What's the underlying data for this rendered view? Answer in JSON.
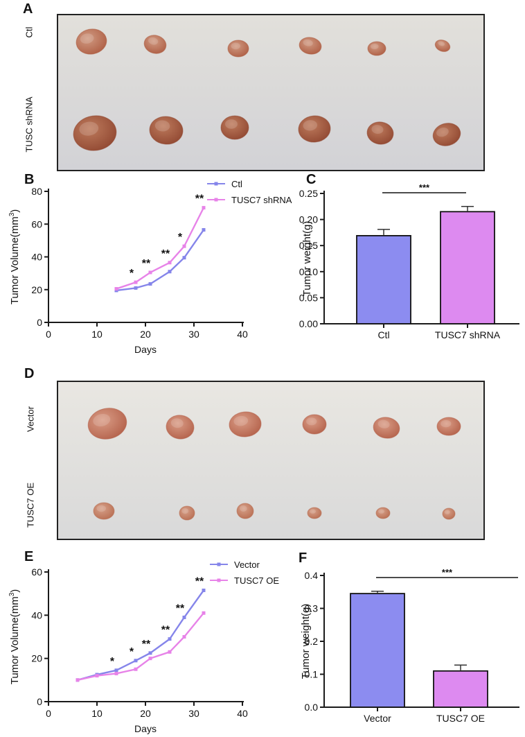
{
  "panel_labels": [
    "A",
    "B",
    "C",
    "D",
    "E",
    "F"
  ],
  "photos": [
    {
      "panel": "A",
      "background": {
        "top": "#e2e0db",
        "bottom": "#d2d2d6"
      },
      "rows": [
        {
          "label": "Ctl",
          "specimen_count": 6,
          "light": "#d09a82",
          "dark": "#ad5c42",
          "tumors": [
            [
              50,
              40,
              22,
              18,
              -10
            ],
            [
              142,
              44,
              16,
              13,
              15
            ],
            [
              262,
              50,
              15,
              12,
              0
            ],
            [
              366,
              46,
              16,
              12,
              10
            ],
            [
              462,
              50,
              13,
              10,
              0
            ],
            [
              557,
              46,
              11,
              8,
              20
            ]
          ]
        },
        {
          "label": "TUSC shRNA",
          "specimen_count": 6,
          "light": "#bd7a5c",
          "dark": "#8f4630",
          "tumors": [
            [
              55,
              172,
              31,
              25,
              -8
            ],
            [
              158,
              168,
              24,
              20,
              5
            ],
            [
              257,
              164,
              20,
              17,
              0
            ],
            [
              372,
              166,
              23,
              19,
              -5
            ],
            [
              467,
              172,
              19,
              16,
              8
            ],
            [
              563,
              174,
              20,
              16,
              -15
            ]
          ]
        }
      ]
    },
    {
      "panel": "D",
      "background": {
        "top": "#e9e7e2",
        "bottom": "#d9d9d9"
      },
      "rows": [
        {
          "label": "Vector",
          "specimen_count": 6,
          "light": "#d99c86",
          "dark": "#b25f48",
          "tumors": [
            [
              73,
              62,
              28,
              22,
              -12
            ],
            [
              178,
              67,
              20,
              17,
              8
            ],
            [
              272,
              63,
              23,
              18,
              -5
            ],
            [
              372,
              63,
              17,
              14,
              0
            ],
            [
              476,
              68,
              19,
              15,
              10
            ],
            [
              566,
              66,
              17,
              13,
              0
            ]
          ]
        },
        {
          "label": "TUSC7 OE",
          "specimen_count": 6,
          "light": "#d6a089",
          "dark": "#b76c50",
          "tumors": [
            [
              68,
              188,
              15,
              12,
              0
            ],
            [
              188,
              191,
              11,
              10,
              0
            ],
            [
              272,
              188,
              12,
              11,
              5
            ],
            [
              372,
              191,
              10,
              8,
              0
            ],
            [
              471,
              191,
              10,
              8,
              0
            ],
            [
              566,
              192,
              9,
              8,
              0
            ]
          ]
        }
      ]
    }
  ],
  "chart_data": [
    {
      "type": "line",
      "panel": "B",
      "x": [
        14,
        18,
        21,
        25,
        28,
        32
      ],
      "series": [
        {
          "name": "Ctl",
          "color": "#8585ea",
          "values": [
            19.5,
            21,
            23.5,
            31,
            39.5,
            56.5
          ]
        },
        {
          "name": "TUSC7 shRNA",
          "color": "#e783e8",
          "values": [
            20.5,
            24.5,
            30.5,
            36.5,
            46.5,
            70
          ]
        }
      ],
      "xlabel": "Days",
      "ylabel": "Tumor Volume(mm3)",
      "ylabel_parts": [
        [
          "Tumor Volume(mm",
          false
        ],
        [
          "3",
          true
        ],
        [
          ")",
          false
        ]
      ],
      "xlim": [
        0,
        40
      ],
      "ylim": [
        0,
        80
      ],
      "xticks": [
        "0",
        "10",
        "20",
        "30",
        "40"
      ],
      "yticks": [
        "0",
        "20",
        "40",
        "60",
        "80"
      ],
      "annotations": [
        {
          "day": 18,
          "label": "*"
        },
        {
          "day": 21,
          "label": "**"
        },
        {
          "day": 25,
          "label": "**"
        },
        {
          "day": 28,
          "label": "*"
        },
        {
          "day": 32,
          "label": "**"
        }
      ],
      "legend_position": "top-right",
      "grid": false
    },
    {
      "type": "bar",
      "panel": "C",
      "categories": [
        "Ctl",
        "TUSC7 shRNA"
      ],
      "values": [
        0.169,
        0.215
      ],
      "errors": [
        0.012,
        0.01
      ],
      "colors": [
        "#8c8cf0",
        "#dd8af0"
      ],
      "ylabel": "Tumor weight(g)",
      "ylabel_parts": [
        [
          "Tumor weight(g)",
          false
        ]
      ],
      "ylim": [
        0,
        0.25
      ],
      "yticks": [
        "0.00",
        "0.05",
        "0.10",
        "0.15",
        "0.20",
        "0.25"
      ],
      "significance": "***",
      "grid": false
    },
    {
      "type": "line",
      "panel": "E",
      "x": [
        6,
        10,
        14,
        18,
        21,
        25,
        28,
        32
      ],
      "series": [
        {
          "name": "Vector",
          "color": "#8585ea",
          "values": [
            10,
            12.5,
            14.5,
            19,
            22.5,
            29,
            39,
            51.5
          ]
        },
        {
          "name": "TUSC7 OE",
          "color": "#e783e8",
          "values": [
            10,
            12,
            13,
            15,
            20,
            23,
            30,
            41
          ]
        }
      ],
      "xlabel": "Days",
      "ylabel": "Tumor Volume(mm3)",
      "ylabel_parts": [
        [
          "Tumor Volume(mm",
          false
        ],
        [
          "3",
          true
        ],
        [
          ")",
          false
        ]
      ],
      "xlim": [
        0,
        40
      ],
      "ylim": [
        0,
        60
      ],
      "xticks": [
        "0",
        "10",
        "20",
        "30",
        "40"
      ],
      "yticks": [
        "0",
        "20",
        "40",
        "60"
      ],
      "annotations": [
        {
          "day": 14,
          "label": "*"
        },
        {
          "day": 18,
          "label": "*"
        },
        {
          "day": 21,
          "label": "**"
        },
        {
          "day": 25,
          "label": "**"
        },
        {
          "day": 28,
          "label": "**"
        },
        {
          "day": 32,
          "label": "**"
        }
      ],
      "legend_position": "top-right",
      "grid": false
    },
    {
      "type": "bar",
      "panel": "F",
      "categories": [
        "Vector",
        "TUSC7 OE"
      ],
      "values": [
        0.345,
        0.11
      ],
      "errors": [
        0.007,
        0.018
      ],
      "colors": [
        "#8c8cf0",
        "#dd8af0"
      ],
      "ylabel": "Tumor weight(g)",
      "ylabel_parts": [
        [
          "Tumor weight(g)",
          false
        ]
      ],
      "ylim": [
        0,
        0.4
      ],
      "yticks": [
        "0.0",
        "0.1",
        "0.2",
        "0.3",
        "0.4"
      ],
      "significance": "***",
      "grid": false
    }
  ]
}
